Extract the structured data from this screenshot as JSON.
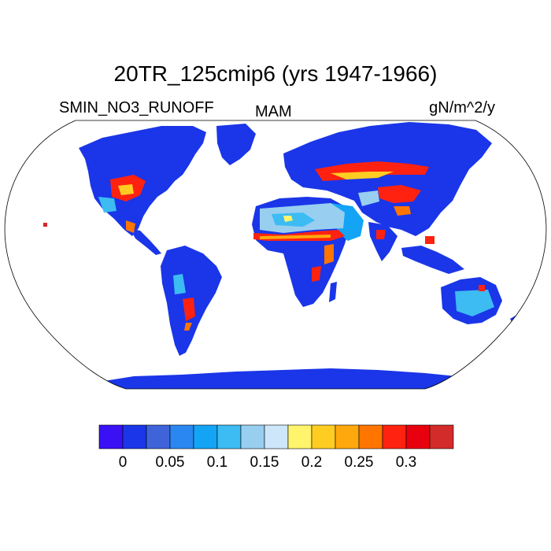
{
  "title": "20TR_125cmip6 (yrs 1947-1966)",
  "left_label": "SMIN_NO3_RUNOFF",
  "center_label": "MAM",
  "right_label": "gN/m^2/y",
  "colors": {
    "ocean": "#ffffff",
    "outline": "#000000",
    "colorbar": [
      "#3a10f5",
      "#1a36e8",
      "#3f63d9",
      "#2a86f0",
      "#13a4f5",
      "#3cbcf2",
      "#98cef0",
      "#cde6fa",
      "#fff46b",
      "#ffcd22",
      "#ffa80d",
      "#ff7500",
      "#ff2210",
      "#e8000e",
      "#d32a2a"
    ]
  },
  "colorbar_ticks": [
    "0",
    "0.05",
    "0.1",
    "0.15",
    "0.2",
    "0.25",
    "0.3"
  ],
  "chart_data": {
    "type": "heatmap",
    "title": "20TR_125cmip6 (yrs 1947-1966)",
    "variable": "SMIN_NO3_RUNOFF",
    "season": "MAM",
    "units": "gN/m^2/y",
    "colorbar_levels": [
      0,
      0.025,
      0.05,
      0.075,
      0.1,
      0.125,
      0.15,
      0.175,
      0.2,
      0.225,
      0.25,
      0.275,
      0.3,
      0.325
    ],
    "regions": [
      {
        "name": "Greenland",
        "value": 0
      },
      {
        "name": "Antarctica",
        "value": 0
      },
      {
        "name": "Northern Canada",
        "value": 0
      },
      {
        "name": "Central US",
        "value": 0.3
      },
      {
        "name": "Sahara",
        "value": 0.15
      },
      {
        "name": "Sahel",
        "value": 0.3
      },
      {
        "name": "Europe / Russia belt",
        "value": 0.3
      },
      {
        "name": "Arabia",
        "value": 0.1
      },
      {
        "name": "Central Asia",
        "value": 0.25
      },
      {
        "name": "Siberia",
        "value": 0
      },
      {
        "name": "Amazon",
        "value": 0
      },
      {
        "name": "Australia interior",
        "value": 0.1
      }
    ]
  }
}
